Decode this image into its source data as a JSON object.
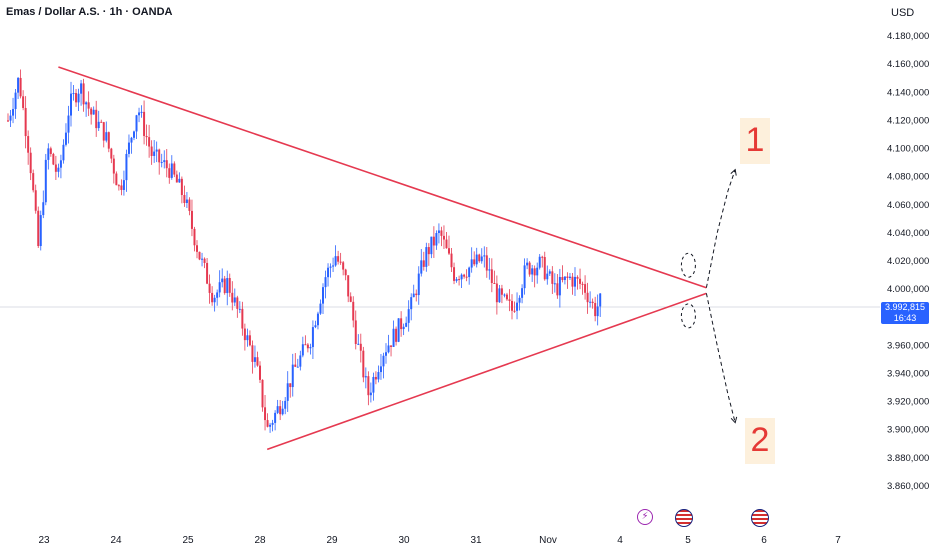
{
  "header": {
    "title": "Emas / Dollar A.S. · 1h · OANDA",
    "currency": "USD"
  },
  "price_tag": {
    "price": "3.992,815",
    "countdown": "16:43",
    "color": "#2962ff"
  },
  "colors": {
    "up": "#2962ff",
    "down": "#e53950",
    "trendline": "#e53950"
  },
  "scenarios": {
    "up_label": "1",
    "down_label": "2"
  },
  "events": [
    {
      "icon": "lightning-icon"
    },
    {
      "icon": "us-flag-icon"
    },
    {
      "icon": "us-flag-icon"
    }
  ],
  "chart_data": {
    "type": "candlestick",
    "symbol": "Emas / Dollar A.S.",
    "interval": "1h",
    "source": "OANDA",
    "y_ticks": [
      "4.180,000",
      "4.160,000",
      "4.140,000",
      "4.120,000",
      "4.100,000",
      "4.080,000",
      "4.060,000",
      "4.040,000",
      "4.020,000",
      "4.000,000",
      "3.980,000",
      "3.960,000",
      "3.940,000",
      "3.920,000",
      "3.900,000",
      "3.880,000",
      "3.860,000"
    ],
    "y_tick_values": [
      4180,
      4160,
      4140,
      4120,
      4100,
      4080,
      4060,
      4040,
      4020,
      4000,
      3980,
      3960,
      3940,
      3920,
      3900,
      3880,
      3860
    ],
    "x_ticks": [
      "23",
      "24",
      "25",
      "28",
      "29",
      "30",
      "31",
      "Nov",
      "4",
      "5",
      "6",
      "7"
    ],
    "last_price": 3992.815,
    "close_path": [
      {
        "x": 0.0,
        "y": 4120
      },
      {
        "x": 0.15,
        "y": 4150
      },
      {
        "x": 0.3,
        "y": 4095
      },
      {
        "x": 0.42,
        "y": 4030
      },
      {
        "x": 0.55,
        "y": 4100
      },
      {
        "x": 0.7,
        "y": 4080
      },
      {
        "x": 0.85,
        "y": 4130
      },
      {
        "x": 1.0,
        "y": 4145
      },
      {
        "x": 1.15,
        "y": 4125
      },
      {
        "x": 1.35,
        "y": 4110
      },
      {
        "x": 1.55,
        "y": 4070
      },
      {
        "x": 1.8,
        "y": 4130
      },
      {
        "x": 2.0,
        "y": 4095
      },
      {
        "x": 2.25,
        "y": 4085
      },
      {
        "x": 2.45,
        "y": 4065
      },
      {
        "x": 2.65,
        "y": 4025
      },
      {
        "x": 2.85,
        "y": 3995
      },
      {
        "x": 3.05,
        "y": 4005
      },
      {
        "x": 3.25,
        "y": 3975
      },
      {
        "x": 3.45,
        "y": 3945
      },
      {
        "x": 3.6,
        "y": 3900
      },
      {
        "x": 3.8,
        "y": 3920
      },
      {
        "x": 4.0,
        "y": 3945
      },
      {
        "x": 4.2,
        "y": 3965
      },
      {
        "x": 4.4,
        "y": 4008
      },
      {
        "x": 4.55,
        "y": 4024
      },
      {
        "x": 4.7,
        "y": 4005
      },
      {
        "x": 4.85,
        "y": 3962
      },
      {
        "x": 5.0,
        "y": 3925
      },
      {
        "x": 5.2,
        "y": 3955
      },
      {
        "x": 5.4,
        "y": 3970
      },
      {
        "x": 5.6,
        "y": 3988
      },
      {
        "x": 5.8,
        "y": 4025
      },
      {
        "x": 6.0,
        "y": 4040
      },
      {
        "x": 6.2,
        "y": 4010
      },
      {
        "x": 6.4,
        "y": 4015
      },
      {
        "x": 6.6,
        "y": 4022
      },
      {
        "x": 6.8,
        "y": 3995
      },
      {
        "x": 7.0,
        "y": 3985
      },
      {
        "x": 7.2,
        "y": 4015
      },
      {
        "x": 7.4,
        "y": 4018
      },
      {
        "x": 7.6,
        "y": 4000
      },
      {
        "x": 7.8,
        "y": 4008
      },
      {
        "x": 8.0,
        "y": 4002
      },
      {
        "x": 8.15,
        "y": 3985
      },
      {
        "x": 8.25,
        "y": 3992.8
      }
    ],
    "trendlines": [
      {
        "name": "resistance",
        "from": {
          "x": 0.7,
          "y": 4158
        },
        "to": {
          "x": 9.7,
          "y": 4001
        }
      },
      {
        "name": "support",
        "from": {
          "x": 3.6,
          "y": 3886
        },
        "to": {
          "x": 9.7,
          "y": 3997
        }
      }
    ],
    "scenario_paths": [
      {
        "label": "1",
        "direction": "up",
        "points": [
          {
            "x": 9.7,
            "y": 4001
          },
          {
            "x": 9.85,
            "y": 4040
          },
          {
            "x": 10.0,
            "y": 4070
          },
          {
            "x": 10.1,
            "y": 4085
          }
        ]
      },
      {
        "label": "2",
        "direction": "down",
        "points": [
          {
            "x": 9.7,
            "y": 3997
          },
          {
            "x": 9.85,
            "y": 3960
          },
          {
            "x": 10.0,
            "y": 3925
          },
          {
            "x": 10.1,
            "y": 3905
          }
        ]
      }
    ],
    "y_range": [
      3850,
      4190
    ],
    "grid": false
  }
}
